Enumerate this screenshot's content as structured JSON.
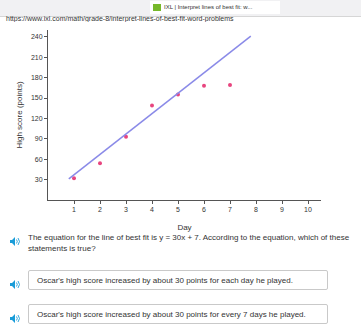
{
  "browser": {
    "tab_title": "IXL | Interpret lines of best fit: w...",
    "url": "https://www.ixl.com/math/grade-8/interpret-lines-of-best-fit-word-problems"
  },
  "chart_data": {
    "type": "scatter",
    "x_label": "Day",
    "y_label": "High score (points)",
    "xlim": [
      0,
      10.5
    ],
    "ylim": [
      0,
      250
    ],
    "xticks": [
      1,
      2,
      3,
      4,
      5,
      6,
      7,
      8,
      9,
      10
    ],
    "yticks": [
      30,
      60,
      90,
      120,
      150,
      180,
      210,
      240
    ],
    "grid": false,
    "series": [
      {
        "type": "scatter",
        "marker": "circle",
        "color": "#e8457f",
        "x": [
          1,
          2,
          3,
          4,
          5,
          6,
          7
        ],
        "values": [
          32,
          54,
          93,
          139,
          155,
          168,
          169
        ]
      },
      {
        "type": "line",
        "line_style": "solid",
        "color": "#8a8ae8",
        "x": [
          0.8,
          7.8
        ],
        "values": [
          31,
          241
        ]
      }
    ]
  },
  "question": {
    "text": "The equation for the line of best fit is y = 30x + 7. According to the equation, which of these statements is true?",
    "choices": [
      "Oscar's high score increased by about 30 points for each day he played.",
      "Oscar's high score increased by about 30 points for every 7 days he played."
    ]
  }
}
